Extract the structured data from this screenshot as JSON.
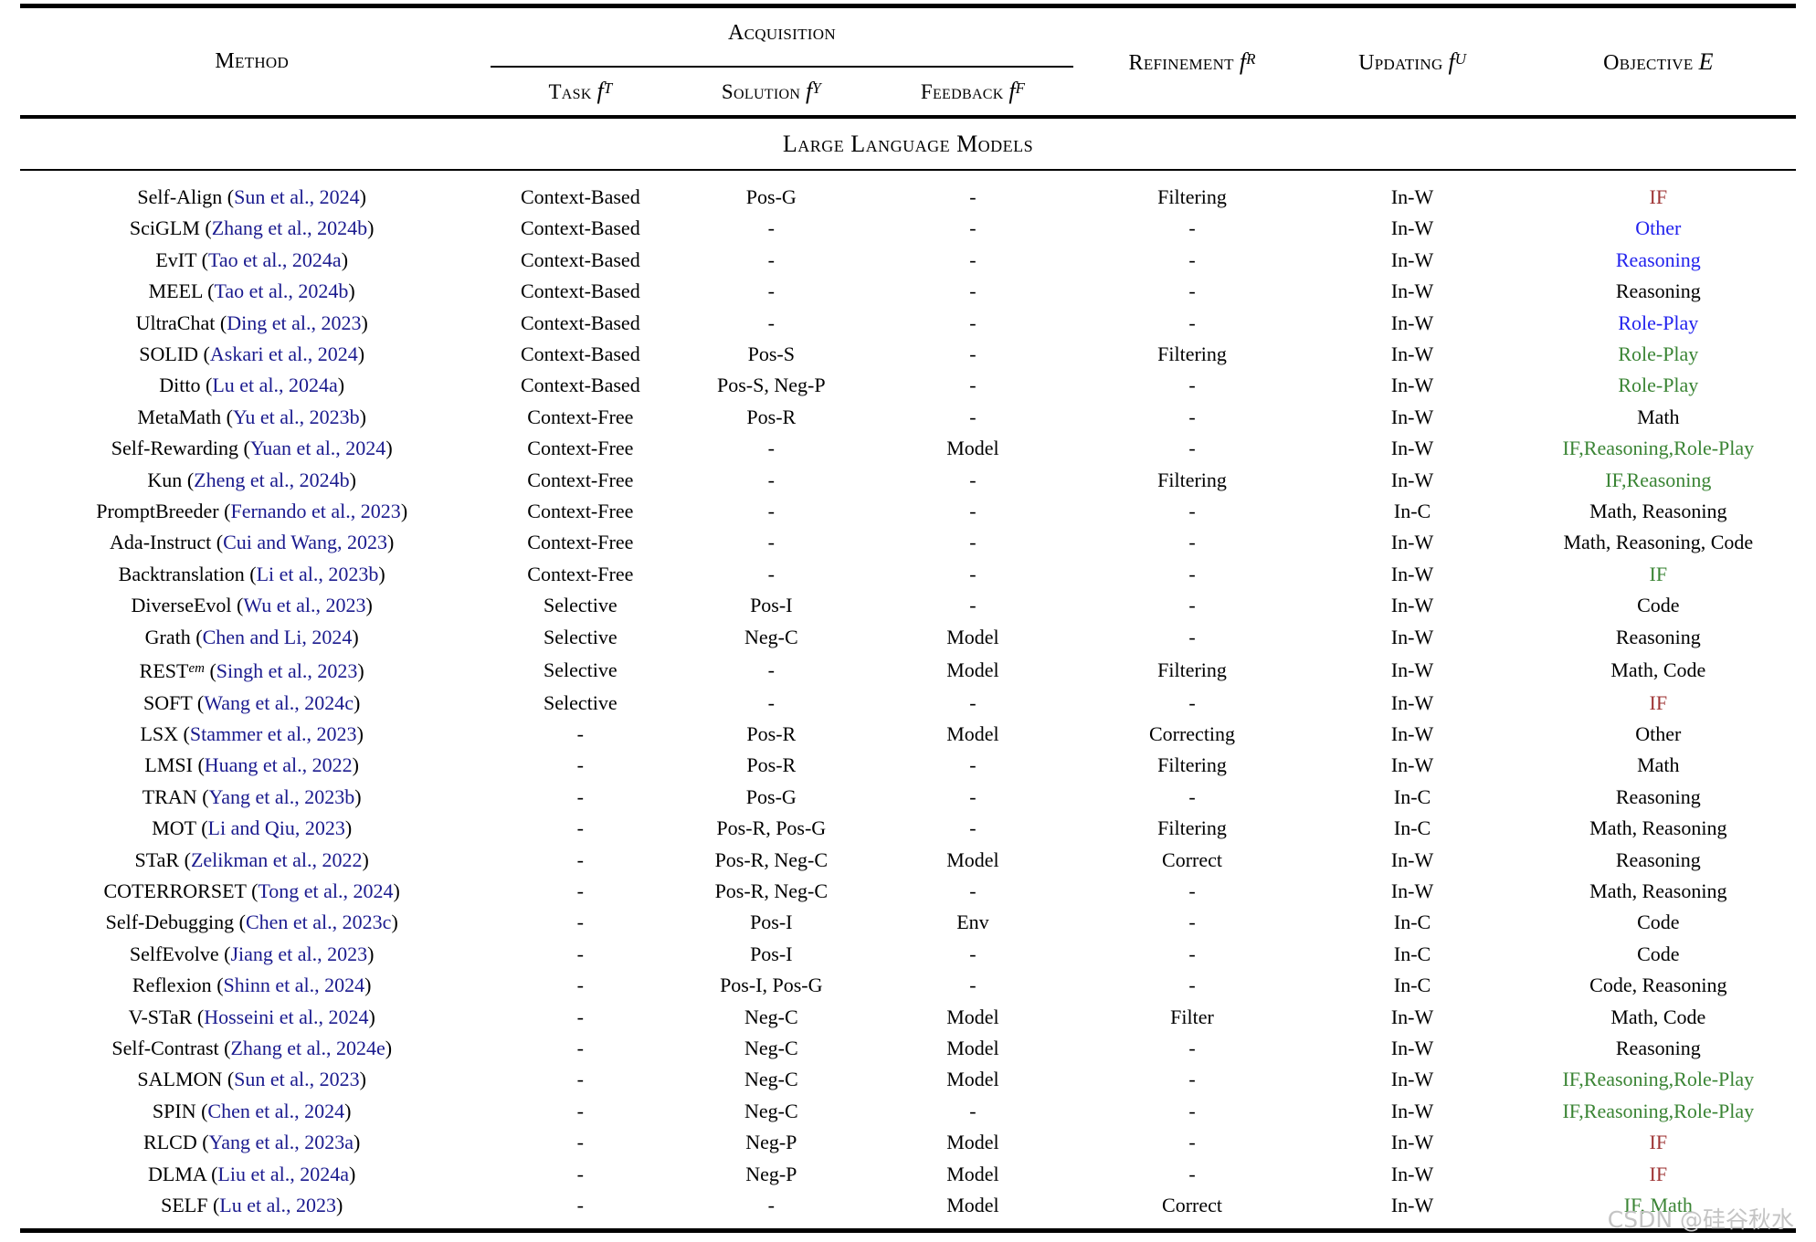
{
  "table": {
    "header": {
      "method": "Method",
      "acquisition": "Acquisition",
      "fn": "f",
      "task_label": "Task",
      "task_sym": "T",
      "solution_label": "Solution",
      "solution_sym": "Y",
      "feedback_label": "Feedback",
      "feedback_sym": "F",
      "refinement_label": "Refinement",
      "refinement_sym": "R",
      "updating_label": "Updating",
      "updating_sym": "U",
      "objective_label": "Objective",
      "objective_sym": "E"
    },
    "section": "Large Language Models",
    "colors": {
      "red": "#9e3434",
      "blue": "#2222ee",
      "green": "#3a8434",
      "black": "#000000",
      "cite": "#1a1a8e"
    },
    "rows": [
      {
        "method": "Self-Align",
        "cite": "Sun et al., 2024",
        "task": "Context-Based",
        "solution": "Pos-G",
        "feedback": "-",
        "refinement": "Filtering",
        "updating": "In-W",
        "objective": "IF",
        "objective_color": "red"
      },
      {
        "method": "SciGLM",
        "cite": "Zhang et al., 2024b",
        "task": "Context-Based",
        "solution": "-",
        "feedback": "-",
        "refinement": "-",
        "updating": "In-W",
        "objective": "Other",
        "objective_color": "blue"
      },
      {
        "method": "EvIT",
        "cite": "Tao et al., 2024a",
        "task": "Context-Based",
        "solution": "-",
        "feedback": "-",
        "refinement": "-",
        "updating": "In-W",
        "objective": "Reasoning",
        "objective_color": "blue"
      },
      {
        "method": "MEEL",
        "cite": "Tao et al., 2024b",
        "task": "Context-Based",
        "solution": "-",
        "feedback": "-",
        "refinement": "-",
        "updating": "In-W",
        "objective": "Reasoning",
        "objective_color": "black"
      },
      {
        "method": "UltraChat",
        "cite": "Ding et al., 2023",
        "task": "Context-Based",
        "solution": "-",
        "feedback": "-",
        "refinement": "-",
        "updating": "In-W",
        "objective": "Role-Play",
        "objective_color": "blue"
      },
      {
        "method": "SOLID",
        "cite": "Askari et al., 2024",
        "task": "Context-Based",
        "solution": "Pos-S",
        "feedback": "-",
        "refinement": "Filtering",
        "updating": "In-W",
        "objective": "Role-Play",
        "objective_color": "green"
      },
      {
        "method": "Ditto",
        "cite": "Lu et al., 2024a",
        "task": "Context-Based",
        "solution": "Pos-S, Neg-P",
        "feedback": "-",
        "refinement": "-",
        "updating": "In-W",
        "objective": "Role-Play",
        "objective_color": "green"
      },
      {
        "method": "MetaMath",
        "cite": "Yu et al., 2023b",
        "task": "Context-Free",
        "solution": "Pos-R",
        "feedback": "-",
        "refinement": "-",
        "updating": "In-W",
        "objective": "Math",
        "objective_color": "black"
      },
      {
        "method": "Self-Rewarding",
        "cite": "Yuan et al., 2024",
        "task": "Context-Free",
        "solution": "-",
        "feedback": "Model",
        "refinement": "-",
        "updating": "In-W",
        "objective": "IF,Reasoning,Role-Play",
        "objective_color": "green"
      },
      {
        "method": "Kun",
        "cite": "Zheng et al., 2024b",
        "task": "Context-Free",
        "solution": "-",
        "feedback": "-",
        "refinement": "Filtering",
        "updating": "In-W",
        "objective": "IF,Reasoning",
        "objective_color": "green"
      },
      {
        "method": "PromptBreeder",
        "cite": "Fernando et al., 2023",
        "task": "Context-Free",
        "solution": "-",
        "feedback": "-",
        "refinement": "-",
        "updating": "In-C",
        "objective": "Math, Reasoning",
        "objective_color": "black"
      },
      {
        "method": "Ada-Instruct",
        "cite": "Cui and Wang, 2023",
        "task": "Context-Free",
        "solution": "-",
        "feedback": "-",
        "refinement": "-",
        "updating": "In-W",
        "objective": "Math, Reasoning, Code",
        "objective_color": "black"
      },
      {
        "method": "Backtranslation",
        "cite": "Li et al., 2023b",
        "task": "Context-Free",
        "solution": "-",
        "feedback": "-",
        "refinement": "-",
        "updating": "In-W",
        "objective": "IF",
        "objective_color": "green"
      },
      {
        "method": "DiverseEvol",
        "cite": "Wu et al., 2023",
        "task": "Selective",
        "solution": "Pos-I",
        "feedback": "-",
        "refinement": "-",
        "updating": "In-W",
        "objective": "Code",
        "objective_color": "black"
      },
      {
        "method": "Grath",
        "cite": "Chen and Li, 2024",
        "task": "Selective",
        "solution": "Neg-C",
        "feedback": "Model",
        "refinement": "-",
        "updating": "In-W",
        "objective": "Reasoning",
        "objective_color": "black"
      },
      {
        "method": "REST",
        "method_sup": "em",
        "cite": "Singh et al., 2023",
        "task": "Selective",
        "solution": "-",
        "feedback": "Model",
        "refinement": "Filtering",
        "updating": "In-W",
        "objective": "Math, Code",
        "objective_color": "black"
      },
      {
        "method": "SOFT",
        "cite": "Wang et al., 2024c",
        "task": "Selective",
        "solution": "-",
        "feedback": "-",
        "refinement": "-",
        "updating": "In-W",
        "objective": "IF",
        "objective_color": "red"
      },
      {
        "method": "LSX",
        "cite": "Stammer et al., 2023",
        "task": "-",
        "solution": "Pos-R",
        "feedback": "Model",
        "refinement": "Correcting",
        "updating": "In-W",
        "objective": "Other",
        "objective_color": "black"
      },
      {
        "method": "LMSI",
        "cite": "Huang et al., 2022",
        "task": "-",
        "solution": "Pos-R",
        "feedback": "-",
        "refinement": "Filtering",
        "updating": "In-W",
        "objective": "Math",
        "objective_color": "black"
      },
      {
        "method": "TRAN",
        "cite": "Yang et al., 2023b",
        "task": "-",
        "solution": "Pos-G",
        "feedback": "-",
        "refinement": "-",
        "updating": "In-C",
        "objective": "Reasoning",
        "objective_color": "black"
      },
      {
        "method": "MOT",
        "cite": "Li and Qiu, 2023",
        "task": "-",
        "solution": "Pos-R, Pos-G",
        "feedback": "-",
        "refinement": "Filtering",
        "updating": "In-C",
        "objective": "Math, Reasoning",
        "objective_color": "black"
      },
      {
        "method": "STaR",
        "cite": "Zelikman et al., 2022",
        "task": "-",
        "solution": "Pos-R, Neg-C",
        "feedback": "Model",
        "refinement": "Correct",
        "updating": "In-W",
        "objective": "Reasoning",
        "objective_color": "black"
      },
      {
        "method": "COTERRORSET",
        "cite": "Tong et al., 2024",
        "task": "-",
        "solution": "Pos-R, Neg-C",
        "feedback": "-",
        "refinement": "-",
        "updating": "In-W",
        "objective": "Math, Reasoning",
        "objective_color": "black"
      },
      {
        "method": "Self-Debugging",
        "cite": "Chen et al., 2023c",
        "task": "-",
        "solution": "Pos-I",
        "feedback": "Env",
        "refinement": "-",
        "updating": "In-C",
        "objective": "Code",
        "objective_color": "black"
      },
      {
        "method": "SelfEvolve",
        "cite": "Jiang et al., 2023",
        "task": "-",
        "solution": "Pos-I",
        "feedback": "-",
        "refinement": "-",
        "updating": "In-C",
        "objective": "Code",
        "objective_color": "black"
      },
      {
        "method": "Reflexion",
        "cite": "Shinn et al., 2024",
        "task": "-",
        "solution": "Pos-I, Pos-G",
        "feedback": "-",
        "refinement": "-",
        "updating": "In-C",
        "objective": "Code, Reasoning",
        "objective_color": "black"
      },
      {
        "method": "V-STaR",
        "cite": "Hosseini et al., 2024",
        "task": "-",
        "solution": "Neg-C",
        "feedback": "Model",
        "refinement": "Filter",
        "updating": "In-W",
        "objective": "Math, Code",
        "objective_color": "black"
      },
      {
        "method": "Self-Contrast",
        "cite": "Zhang et al., 2024e",
        "task": "-",
        "solution": "Neg-C",
        "feedback": "Model",
        "refinement": "-",
        "updating": "In-W",
        "objective": "Reasoning",
        "objective_color": "black"
      },
      {
        "method": "SALMON",
        "cite": "Sun et al., 2023",
        "task": "-",
        "solution": "Neg-C",
        "feedback": "Model",
        "refinement": "-",
        "updating": "In-W",
        "objective": "IF,Reasoning,Role-Play",
        "objective_color": "green"
      },
      {
        "method": "SPIN",
        "cite": "Chen et al., 2024",
        "task": "-",
        "solution": "Neg-C",
        "feedback": "-",
        "refinement": "-",
        "updating": "In-W",
        "objective": "IF,Reasoning,Role-Play",
        "objective_color": "green"
      },
      {
        "method": "RLCD",
        "cite": "Yang et al., 2023a",
        "task": "-",
        "solution": "Neg-P",
        "feedback": "Model",
        "refinement": "-",
        "updating": "In-W",
        "objective": "IF",
        "objective_color": "red"
      },
      {
        "method": "DLMA",
        "cite": "Liu et al., 2024a",
        "task": "-",
        "solution": "Neg-P",
        "feedback": "Model",
        "refinement": "-",
        "updating": "In-W",
        "objective": "IF",
        "objective_color": "red"
      },
      {
        "method": "SELF",
        "cite": "Lu et al., 2023",
        "task": "-",
        "solution": "-",
        "feedback": "Model",
        "refinement": "Correct",
        "updating": "In-W",
        "objective": "IF, Math",
        "objective_color": "green"
      }
    ]
  },
  "watermark": "CSDN @硅谷秋水"
}
